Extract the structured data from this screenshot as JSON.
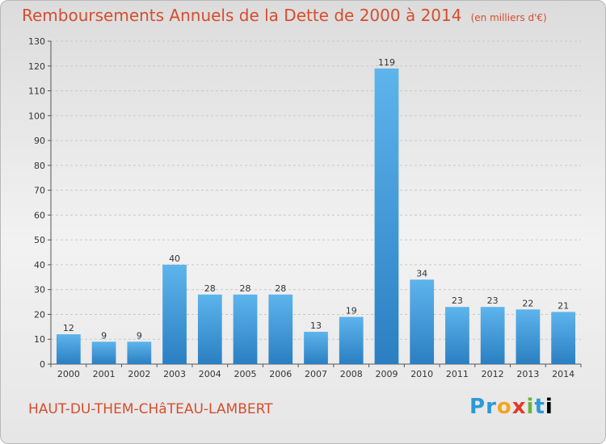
{
  "title": "Remboursements Annuels de la Dette de 2000 à 2014",
  "subtitle": "(en milliers d'€)",
  "commune": "HAUT-DU-THEM-CHâTEAU-LAMBERT",
  "logo": "Proxiti",
  "colors": {
    "title": "#d64d2e",
    "bar_light": "#5eb4ec",
    "bar_dark": "#2a7fc2"
  },
  "chart_data": {
    "type": "bar",
    "title": "Remboursements Annuels de la Dette de 2000 à 2014",
    "subtitle": "(en milliers d'€)",
    "categories": [
      "2000",
      "2001",
      "2002",
      "2003",
      "2004",
      "2005",
      "2006",
      "2007",
      "2008",
      "2009",
      "2010",
      "2011",
      "2012",
      "2013",
      "2014"
    ],
    "values": [
      12,
      9,
      9,
      40,
      28,
      28,
      28,
      13,
      19,
      119,
      34,
      23,
      23,
      22,
      21
    ],
    "ylim": [
      0,
      130
    ],
    "yticks": [
      0,
      10,
      20,
      30,
      40,
      50,
      60,
      70,
      80,
      90,
      100,
      110,
      120,
      130
    ],
    "grid": true,
    "xlabel": "",
    "ylabel": ""
  }
}
